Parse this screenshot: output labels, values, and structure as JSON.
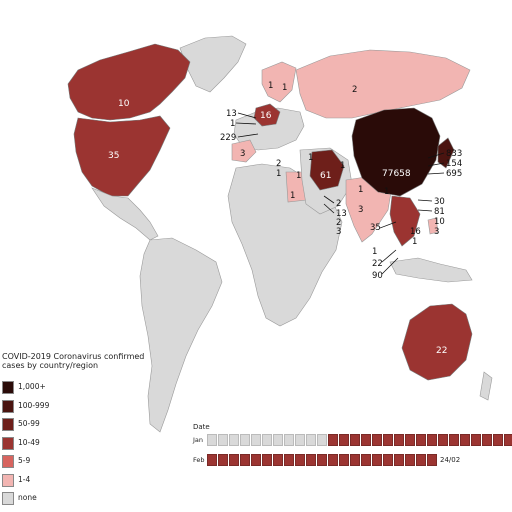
{
  "map": {
    "regions": [
      {
        "name": "canada",
        "category": "10-49",
        "label": "10"
      },
      {
        "name": "united-states",
        "category": "10-49",
        "label": "35"
      },
      {
        "name": "china",
        "category": "1,000+",
        "label": "77658"
      },
      {
        "name": "iran",
        "category": "50-99",
        "label": "61"
      },
      {
        "name": "australia",
        "category": "10-49",
        "label": "22"
      },
      {
        "name": "russia",
        "category": "1-4",
        "label": "2"
      },
      {
        "name": "india",
        "category": "1-4",
        "label": "3"
      },
      {
        "name": "egypt",
        "category": "1-4",
        "label": "1"
      },
      {
        "name": "spain",
        "category": "1-4",
        "label": "3"
      },
      {
        "name": "germany",
        "category": "10-49",
        "label": "16"
      },
      {
        "name": "finland",
        "category": "1-4",
        "label": "1"
      },
      {
        "name": "sweden",
        "category": "1-4",
        "label": "1"
      },
      {
        "name": "israel",
        "category": "1-4",
        "label": "1"
      },
      {
        "name": "afghanistan",
        "category": "1-4",
        "label": "1"
      },
      {
        "name": "nepal",
        "category": "1-4",
        "label": "1"
      },
      {
        "name": "iraq",
        "category": "1-4",
        "label": "1"
      }
    ],
    "callouts_left": [
      "13",
      "1",
      "229",
      "2",
      "1"
    ],
    "callouts_gulf": [
      "2",
      "13",
      "2",
      "3"
    ],
    "callouts_east_asia": [
      "833",
      "154",
      "695"
    ],
    "callouts_sea": [
      "1",
      "30",
      "81",
      "10",
      "35",
      "16",
      "3",
      "1",
      "1",
      "22",
      "90"
    ]
  },
  "legend": {
    "title": "COVID-2019 Coronavirus confirmed cases by country/region",
    "items": [
      {
        "label": "1,000+",
        "color": "#2a0b08"
      },
      {
        "label": "100-999",
        "color": "#4a1410"
      },
      {
        "label": "50-99",
        "color": "#6e1f1a"
      },
      {
        "label": "10-49",
        "color": "#9b3431"
      },
      {
        "label": "5-9",
        "color": "#d7645f"
      },
      {
        "label": "1-4",
        "color": "#f2b5b2"
      },
      {
        "label": "none",
        "color": "#d9d9d9"
      }
    ]
  },
  "timeline": {
    "header": "Date",
    "jan_label": "Jan",
    "feb_label": "Feb",
    "jan_empty_days": 11,
    "jan_filled_days": 18,
    "feb_filled_days": 21,
    "current_date": "24/02"
  }
}
